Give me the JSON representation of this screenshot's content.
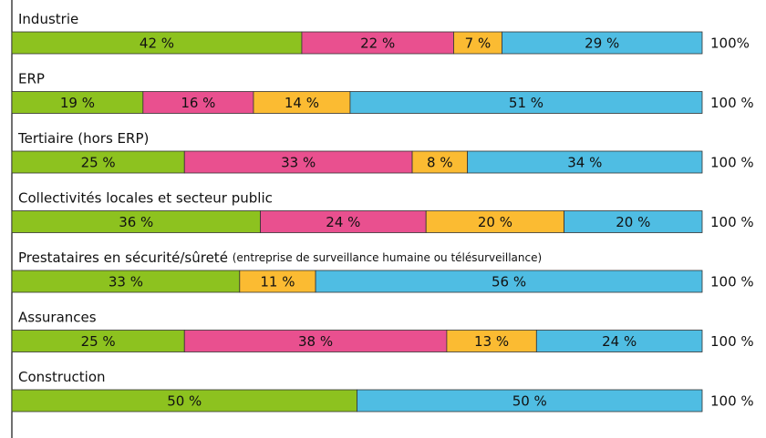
{
  "chart_data": {
    "type": "stacked_bar",
    "categories": [
      "Industrie",
      "ERP",
      "Tertiaire (hors ERP)",
      "Collectivités locales et secteur public",
      "Prestataires en sécurité/sûreté",
      "Assurances",
      "Construction"
    ],
    "category_notes": [
      null,
      null,
      null,
      null,
      "(entreprise de surveillance humaine ou télésurveillance)",
      null,
      null
    ],
    "series": [
      {
        "color": "#8dc21f",
        "values": [
          42,
          19,
          25,
          36,
          33,
          25,
          50
        ],
        "value_labels": [
          "42 %",
          "19 %",
          "25 %",
          "36 %",
          "33 %",
          "25 %",
          "50 %"
        ]
      },
      {
        "color": "#e9508f",
        "values": [
          22,
          16,
          33,
          24,
          null,
          38,
          null
        ],
        "value_labels": [
          "22 %",
          "16 %",
          "33 %",
          "24 %",
          null,
          "38 %",
          null
        ]
      },
      {
        "color": "#fbbb32",
        "values": [
          7,
          14,
          8,
          20,
          11,
          13,
          null
        ],
        "value_labels": [
          "7 %",
          "14 %",
          "8 %",
          "20 %",
          "11 %",
          "13 %",
          null
        ]
      },
      {
        "color": "#4fbde3",
        "values": [
          29,
          51,
          34,
          20,
          56,
          24,
          50
        ],
        "value_labels": [
          "29 %",
          "51 %",
          "34 %",
          "20 %",
          "56 %",
          "24 %",
          "50 %"
        ]
      }
    ],
    "totals": [
      100,
      100,
      100,
      100,
      100,
      100,
      100
    ],
    "total_labels": [
      "100%",
      "100 %",
      "100 %",
      "100 %",
      "100 %",
      "100 %",
      "100 %"
    ],
    "xlim": [
      0,
      100
    ]
  }
}
